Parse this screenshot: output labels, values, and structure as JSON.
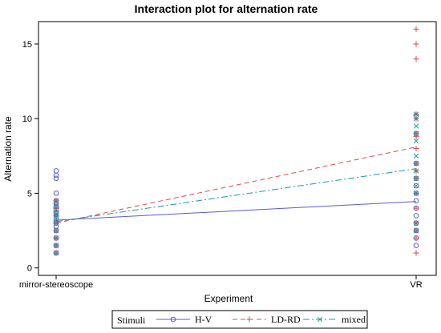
{
  "chart_data": {
    "type": "line",
    "title": "Interaction plot for alternation rate",
    "xlabel": "Experiment",
    "ylabel": "Alternation rate",
    "categories": [
      "mirror-stereoscope",
      "VR"
    ],
    "ylim": [
      -0.5,
      16.5
    ],
    "yticks": [
      0,
      5,
      10,
      15
    ],
    "grid": false,
    "legend": {
      "title": "Stimuli",
      "position": "bottom"
    },
    "series": [
      {
        "name": "H-V",
        "color": "#5a5ad2",
        "dash": "solid",
        "marker": "circle",
        "means": [
          3.2,
          4.45
        ],
        "points": [
          [
            6.5,
            6.2,
            6.0,
            5.0,
            4.5,
            4.3,
            4.1,
            3.9,
            3.7,
            3.5,
            3.3,
            3.1,
            3.0,
            2.8,
            2.5,
            2.0,
            1.5,
            1.0
          ],
          [
            10.2,
            9.0,
            7.0,
            6.0,
            5.5,
            5.0,
            4.5,
            4.0,
            3.5,
            3.0,
            2.5,
            2.0,
            1.5
          ]
        ]
      },
      {
        "name": "LD-RD",
        "color": "#d64b4b",
        "dash": "dashed",
        "marker": "plus",
        "means": [
          3.0,
          8.1
        ],
        "points": [
          [
            4.5,
            4.0,
            3.8,
            3.5,
            3.0,
            2.5,
            2.0,
            1.5,
            1.0
          ],
          [
            16.0,
            15.0,
            14.0,
            10.3,
            10.0,
            9.0,
            8.8,
            8.0,
            7.0,
            6.5,
            6.0,
            5.0,
            4.0,
            3.0,
            2.5,
            2.0,
            1.0
          ]
        ]
      },
      {
        "name": "mixed",
        "color": "#1a9a9a",
        "dash": "dashdot",
        "marker": "x",
        "means": [
          3.1,
          6.65
        ],
        "points": [
          [
            4.5,
            4.2,
            3.9,
            3.6,
            3.3,
            3.0,
            2.5,
            2.0,
            1.5,
            1.0
          ],
          [
            10.3,
            10.0,
            9.5,
            9.0,
            8.5,
            7.5,
            7.0,
            6.5,
            6.0,
            5.5,
            5.0,
            3.0,
            2.5
          ]
        ]
      }
    ]
  }
}
